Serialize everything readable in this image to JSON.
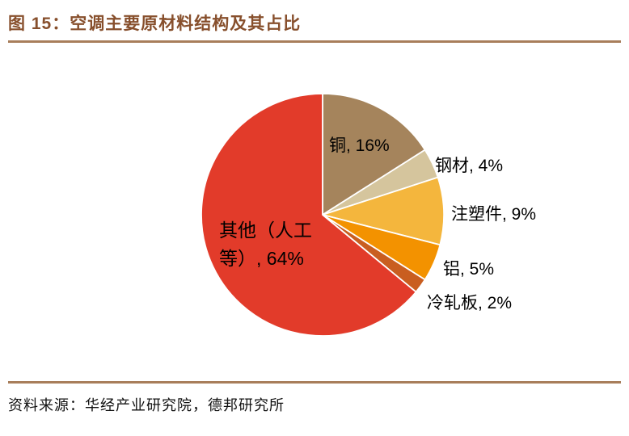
{
  "header": {
    "title": "图 15：空调主要原材料结构及其占比"
  },
  "footer": {
    "source": "资料来源：华经产业研究院，德邦研究所"
  },
  "colors": {
    "title_text": "#874F2C",
    "rule": "#A87E5B",
    "label_text": "#000000",
    "background": "#FFFFFF",
    "slice_separator": "#FFFFFF"
  },
  "chart_data": {
    "type": "pie",
    "title": "空调主要原材料结构及其占比",
    "start_angle_deg": -90,
    "direction": "clockwise",
    "legend_position": "none",
    "grid": false,
    "slices": [
      {
        "name": "铜",
        "value": 16,
        "label": "铜, 16%",
        "color": "#A5845C"
      },
      {
        "name": "钢材",
        "value": 4,
        "label": "钢材, 4%",
        "color": "#D5C59D"
      },
      {
        "name": "注塑件",
        "value": 9,
        "label": "注塑件, 9%",
        "color": "#F4B63D"
      },
      {
        "name": "铝",
        "value": 5,
        "label": "铝, 5%",
        "color": "#F39200"
      },
      {
        "name": "冷轧板",
        "value": 2,
        "label": "冷轧板, 2%",
        "color": "#C95E20"
      },
      {
        "name": "其他（人工等）",
        "value": 64,
        "label": "其他（人工等）, 64%",
        "label_lines": [
          "其他（人工",
          "等）, 64%"
        ],
        "color": "#E23B2A"
      }
    ]
  }
}
